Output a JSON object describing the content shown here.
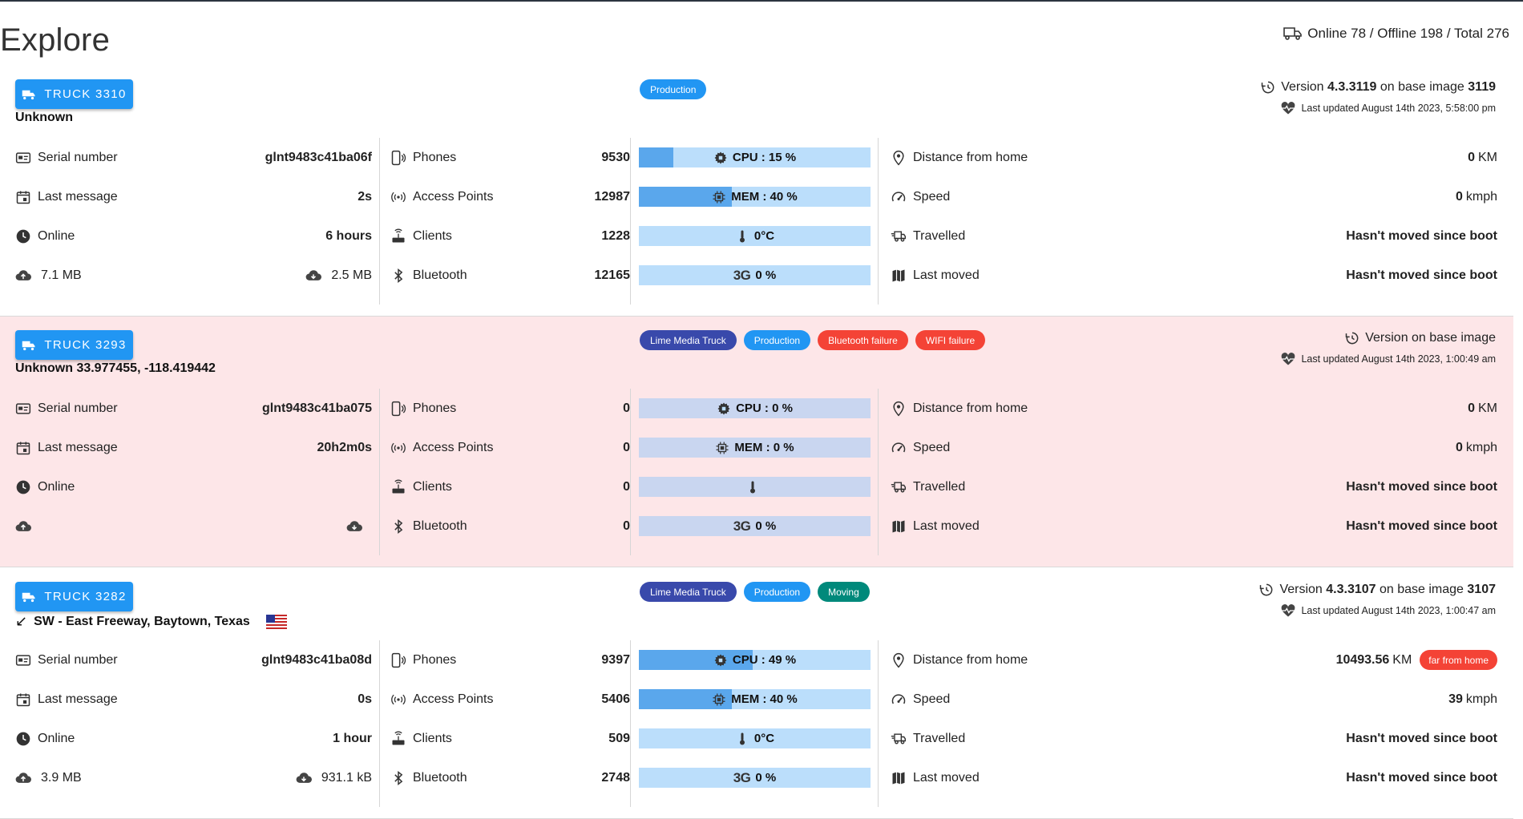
{
  "page": {
    "title": "Explore",
    "summary": "Online 78 / Offline 198 / Total 276"
  },
  "labels": {
    "serial": "Serial number",
    "last_message": "Last message",
    "online": "Online",
    "phones": "Phones",
    "access_points": "Access Points",
    "clients": "Clients",
    "bluetooth": "Bluetooth",
    "distance": "Distance from home",
    "speed": "Speed",
    "travelled": "Travelled",
    "last_moved": "Last moved",
    "version_prefix": "Version",
    "on_base_image": "on base image",
    "km": "KM",
    "kmph": "kmph",
    "network_3g": "3G"
  },
  "colors": {
    "button": "#2196f3",
    "tag_lime": "#3949ab",
    "tag_production": "#2196f3",
    "tag_failure": "#f44336",
    "tag_moving": "#00897b",
    "alert_bg": "#fde6e8"
  },
  "trucks": [
    {
      "button_label": "TRUCK 3310",
      "location": "Unknown",
      "tags": [
        "Production"
      ],
      "version": "4.3.3119",
      "base_image": "3119",
      "version_text": "",
      "updated": "Last updated August 14th 2023, 5:58:00 pm",
      "serial": "glnt9483c41ba06f",
      "last_message": "2s",
      "online": "6 hours",
      "upload": "7.1 MB",
      "download": "2.5 MB",
      "phones": "9530",
      "access_points": "12987",
      "clients": "1228",
      "bluetooth": "12165",
      "cpu": "CPU : 15 %",
      "cpu_level": 15,
      "mem": "MEM : 40 %",
      "mem_level": 40,
      "temp": "0°C",
      "net": "0 %",
      "distance": "0",
      "speed": "0",
      "travelled": "Hasn't moved since boot",
      "last_moved": "Hasn't moved since boot"
    },
    {
      "button_label": "TRUCK 3293",
      "location": "Unknown 33.977455, -118.419442",
      "tags": [
        "Lime Media Truck",
        "Production",
        "Bluetooth failure",
        "WIFI failure"
      ],
      "version_text": "Version on base image",
      "updated": "Last updated August 14th 2023, 1:00:49 am",
      "serial": "glnt9483c41ba075",
      "last_message": "20h2m0s",
      "online": "",
      "upload": "",
      "download": "",
      "phones": "0",
      "access_points": "0",
      "clients": "0",
      "bluetooth": "0",
      "cpu": "CPU : 0 %",
      "cpu_level": 0,
      "mem": "MEM : 0 %",
      "mem_level": 0,
      "temp": "",
      "net": "0 %",
      "distance": "0",
      "speed": "0",
      "travelled": "Hasn't moved since boot",
      "last_moved": "Hasn't moved since boot"
    },
    {
      "button_label": "TRUCK 3282",
      "location": "SW - East Freeway, Baytown, Texas",
      "tags": [
        "Lime Media Truck",
        "Production",
        "Moving"
      ],
      "version": "4.3.3107",
      "base_image": "3107",
      "version_text": "",
      "updated": "Last updated August 14th 2023, 1:00:47 am",
      "serial": "glnt9483c41ba08d",
      "last_message": "0s",
      "online": "1 hour",
      "upload": "3.9 MB",
      "download": "931.1 kB",
      "phones": "9397",
      "access_points": "5406",
      "clients": "509",
      "bluetooth": "2748",
      "cpu": "CPU : 49 %",
      "cpu_level": 49,
      "mem": "MEM : 40 %",
      "mem_level": 40,
      "temp": "0°C",
      "net": "0 %",
      "distance": "10493.56",
      "distance_badge": "far from home",
      "speed": "39",
      "travelled": "Hasn't moved since boot",
      "last_moved": "Hasn't moved since boot"
    }
  ]
}
